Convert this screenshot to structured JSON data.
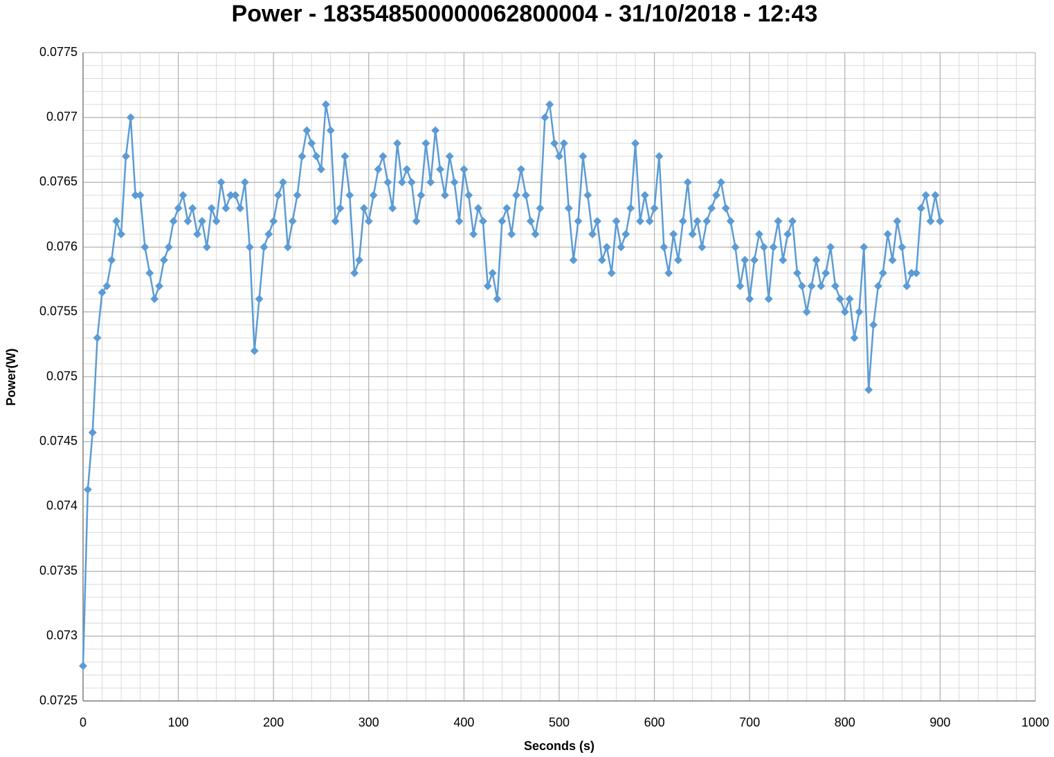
{
  "chart_data": {
    "type": "line_markers",
    "title": "Power - 183548500000062800004 - 31/10/2018 - 12:43",
    "x_label": "Seconds (s)",
    "y_label": "Power(W)",
    "xlim": [
      0,
      1000
    ],
    "xticks": [
      0,
      100,
      200,
      300,
      400,
      500,
      600,
      700,
      800,
      900,
      1000
    ],
    "ylim": [
      0.0725,
      0.0775
    ],
    "yticks": [
      0.0725,
      0.073,
      0.0735,
      0.074,
      0.0745,
      0.075,
      0.0755,
      0.076,
      0.0765,
      0.077,
      0.0775
    ],
    "grid": true,
    "minor_x_step": 20,
    "minor_y_step": 0.0001,
    "series": [
      {
        "name": "Power",
        "color": "#5b9bd5",
        "x": [
          0,
          5,
          10,
          15,
          20,
          25,
          30,
          35,
          40,
          45,
          50,
          55,
          60,
          65,
          70,
          75,
          80,
          85,
          90,
          95,
          100,
          105,
          110,
          115,
          120,
          125,
          130,
          135,
          140,
          145,
          150,
          155,
          160,
          165,
          170,
          175,
          180,
          185,
          190,
          195,
          200,
          205,
          210,
          215,
          220,
          225,
          230,
          235,
          240,
          245,
          250,
          255,
          260,
          265,
          270,
          275,
          280,
          285,
          290,
          295,
          300,
          305,
          310,
          315,
          320,
          325,
          330,
          335,
          340,
          345,
          350,
          355,
          360,
          365,
          370,
          375,
          380,
          385,
          390,
          395,
          400,
          405,
          410,
          415,
          420,
          425,
          430,
          435,
          440,
          445,
          450,
          455,
          460,
          465,
          470,
          475,
          480,
          485,
          490,
          495,
          500,
          505,
          510,
          515,
          520,
          525,
          530,
          535,
          540,
          545,
          550,
          555,
          560,
          565,
          570,
          575,
          580,
          585,
          590,
          595,
          600,
          605,
          610,
          615,
          620,
          625,
          630,
          635,
          640,
          645,
          650,
          655,
          660,
          665,
          670,
          675,
          680,
          685,
          690,
          695,
          700,
          705,
          710,
          715,
          720,
          725,
          730,
          735,
          740,
          745,
          750,
          755,
          760,
          765,
          770,
          775,
          780,
          785,
          790,
          795,
          800,
          805,
          810,
          815,
          820,
          825,
          830,
          835,
          840,
          845,
          850,
          855,
          860,
          865,
          870,
          875,
          880,
          885,
          890,
          895,
          900
        ],
        "values": [
          0.07277,
          0.07413,
          0.07457,
          0.0753,
          0.07565,
          0.0757,
          0.0759,
          0.0762,
          0.0761,
          0.0767,
          0.077,
          0.0764,
          0.0764,
          0.076,
          0.0758,
          0.0756,
          0.0757,
          0.0759,
          0.076,
          0.0762,
          0.0763,
          0.0764,
          0.0762,
          0.0763,
          0.0761,
          0.0762,
          0.076,
          0.0763,
          0.0762,
          0.0765,
          0.0763,
          0.0764,
          0.0764,
          0.0763,
          0.0765,
          0.076,
          0.0752,
          0.0756,
          0.076,
          0.0761,
          0.0762,
          0.0764,
          0.0765,
          0.076,
          0.0762,
          0.0764,
          0.0767,
          0.0769,
          0.0768,
          0.0767,
          0.0766,
          0.0771,
          0.0769,
          0.0762,
          0.0763,
          0.0767,
          0.0764,
          0.0758,
          0.0759,
          0.0763,
          0.0762,
          0.0764,
          0.0766,
          0.0767,
          0.0765,
          0.0763,
          0.0768,
          0.0765,
          0.0766,
          0.0765,
          0.0762,
          0.0764,
          0.0768,
          0.0765,
          0.0769,
          0.0766,
          0.0764,
          0.0767,
          0.0765,
          0.0762,
          0.0766,
          0.0764,
          0.0761,
          0.0763,
          0.0762,
          0.0757,
          0.0758,
          0.0756,
          0.0762,
          0.0763,
          0.0761,
          0.0764,
          0.0766,
          0.0764,
          0.0762,
          0.0761,
          0.0763,
          0.077,
          0.0771,
          0.0768,
          0.0767,
          0.0768,
          0.0763,
          0.0759,
          0.0762,
          0.0767,
          0.0764,
          0.0761,
          0.0762,
          0.0759,
          0.076,
          0.0758,
          0.0762,
          0.076,
          0.0761,
          0.0763,
          0.0768,
          0.0762,
          0.0764,
          0.0762,
          0.0763,
          0.0767,
          0.076,
          0.0758,
          0.0761,
          0.0759,
          0.0762,
          0.0765,
          0.0761,
          0.0762,
          0.076,
          0.0762,
          0.0763,
          0.0764,
          0.0765,
          0.0763,
          0.0762,
          0.076,
          0.0757,
          0.0759,
          0.0756,
          0.0759,
          0.0761,
          0.076,
          0.0756,
          0.076,
          0.0762,
          0.0759,
          0.0761,
          0.0762,
          0.0758,
          0.0757,
          0.0755,
          0.0757,
          0.0759,
          0.0757,
          0.0758,
          0.076,
          0.0757,
          0.0756,
          0.0755,
          0.0756,
          0.0753,
          0.0755,
          0.076,
          0.0749,
          0.0754,
          0.0757,
          0.0758,
          0.0761,
          0.0759,
          0.0762,
          0.076,
          0.0757,
          0.0758,
          0.0758,
          0.0763,
          0.0764,
          0.0762,
          0.0764,
          0.0762
        ]
      }
    ]
  }
}
